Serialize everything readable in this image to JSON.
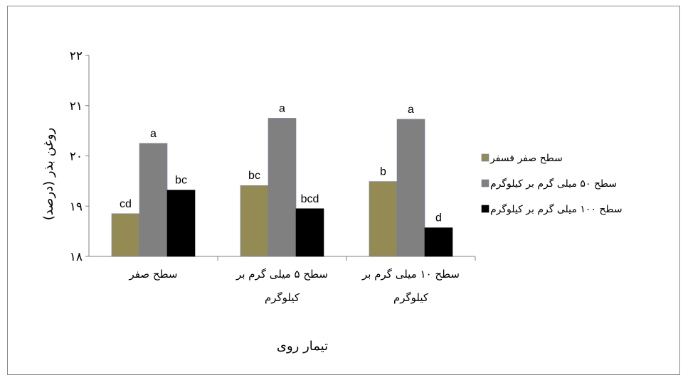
{
  "chart_data": {
    "type": "bar",
    "xlabel": "تیمار روی",
    "ylabel": "روغن بذر (درصد)",
    "ylim": [
      18,
      22
    ],
    "yticks": [
      18,
      19,
      20,
      21,
      22
    ],
    "ytick_labels": [
      "۱۸",
      "۱۹",
      "۲۰",
      "۲۱",
      "۲۲"
    ],
    "grid": false,
    "legend_position": "right",
    "categories": [
      [
        "سطح صفر"
      ],
      [
        "سطح ۵ میلی گرم بر",
        "کیلوگرم"
      ],
      [
        "سطح ۱۰ میلی گرم بر",
        "کیلوگرم"
      ]
    ],
    "series": [
      {
        "name": "سطح صفر فسفر",
        "color": "#948A54",
        "values": [
          18.85,
          19.41,
          19.49
        ],
        "labels": [
          "cd",
          "bc",
          "b"
        ]
      },
      {
        "name": "سطح ۵۰ میلی گرم بر کیلوگرم",
        "color": "#808080",
        "values": [
          20.25,
          20.75,
          20.73
        ],
        "labels": [
          "a",
          "a",
          "a"
        ]
      },
      {
        "name": "سطح ۱۰۰ میلی گرم بر کیلوگرم",
        "color": "#000000",
        "values": [
          19.32,
          18.95,
          18.57
        ],
        "labels": [
          "bc",
          "bcd",
          "d"
        ]
      }
    ]
  }
}
